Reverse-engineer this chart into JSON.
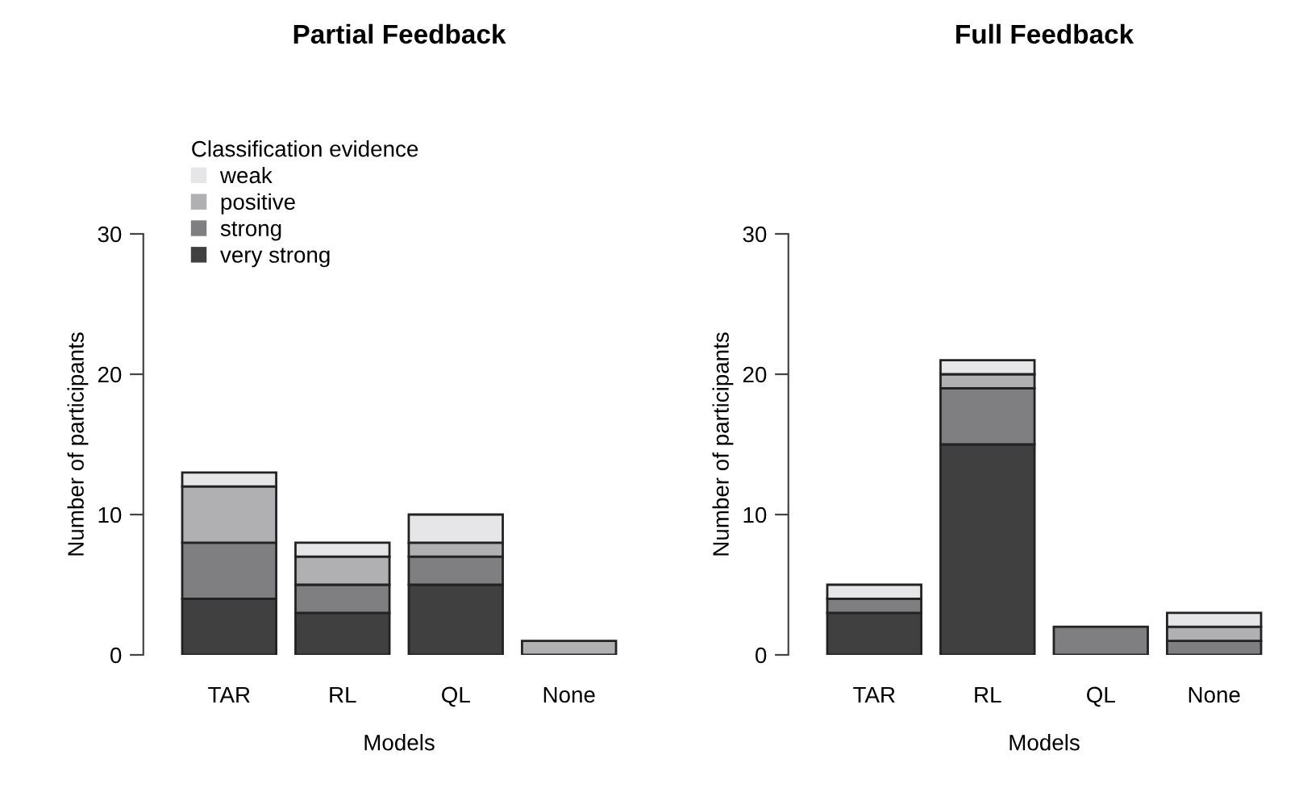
{
  "chart_data": [
    {
      "type": "bar",
      "stacked": true,
      "title": "Partial Feedback",
      "xlabel": "Models",
      "ylabel": "Number of participants",
      "legend_title": "Classification evidence",
      "legend": "top left",
      "categories": [
        "TAR",
        "RL",
        "QL",
        "None"
      ],
      "ylim": [
        0,
        30
      ],
      "yticks": [
        0,
        10,
        20,
        30
      ],
      "grid": false,
      "series": [
        {
          "name": "very strong",
          "color": "#404040",
          "values": [
            4,
            3,
            5,
            0
          ]
        },
        {
          "name": "strong",
          "color": "#7f7f81",
          "values": [
            4,
            2,
            2,
            0
          ]
        },
        {
          "name": "positive",
          "color": "#b0b0b2",
          "values": [
            4,
            2,
            1,
            1
          ]
        },
        {
          "name": "weak",
          "color": "#e6e6e8",
          "values": [
            1,
            1,
            2,
            0
          ]
        }
      ]
    },
    {
      "type": "bar",
      "stacked": true,
      "title": "Full Feedback",
      "xlabel": "Models",
      "ylabel": "Number of participants",
      "categories": [
        "TAR",
        "RL",
        "QL",
        "None"
      ],
      "ylim": [
        0,
        30
      ],
      "yticks": [
        0,
        10,
        20,
        30
      ],
      "grid": false,
      "series": [
        {
          "color": "#404040",
          "values": [
            3,
            15,
            0,
            0
          ]
        },
        {
          "color": "#7f7f81",
          "values": [
            1,
            4,
            2,
            1
          ]
        },
        {
          "color": "#b0b0b2",
          "values": [
            0,
            1,
            0,
            1
          ]
        },
        {
          "color": "#e6e6e8",
          "values": [
            1,
            1,
            0,
            1
          ]
        }
      ]
    }
  ]
}
